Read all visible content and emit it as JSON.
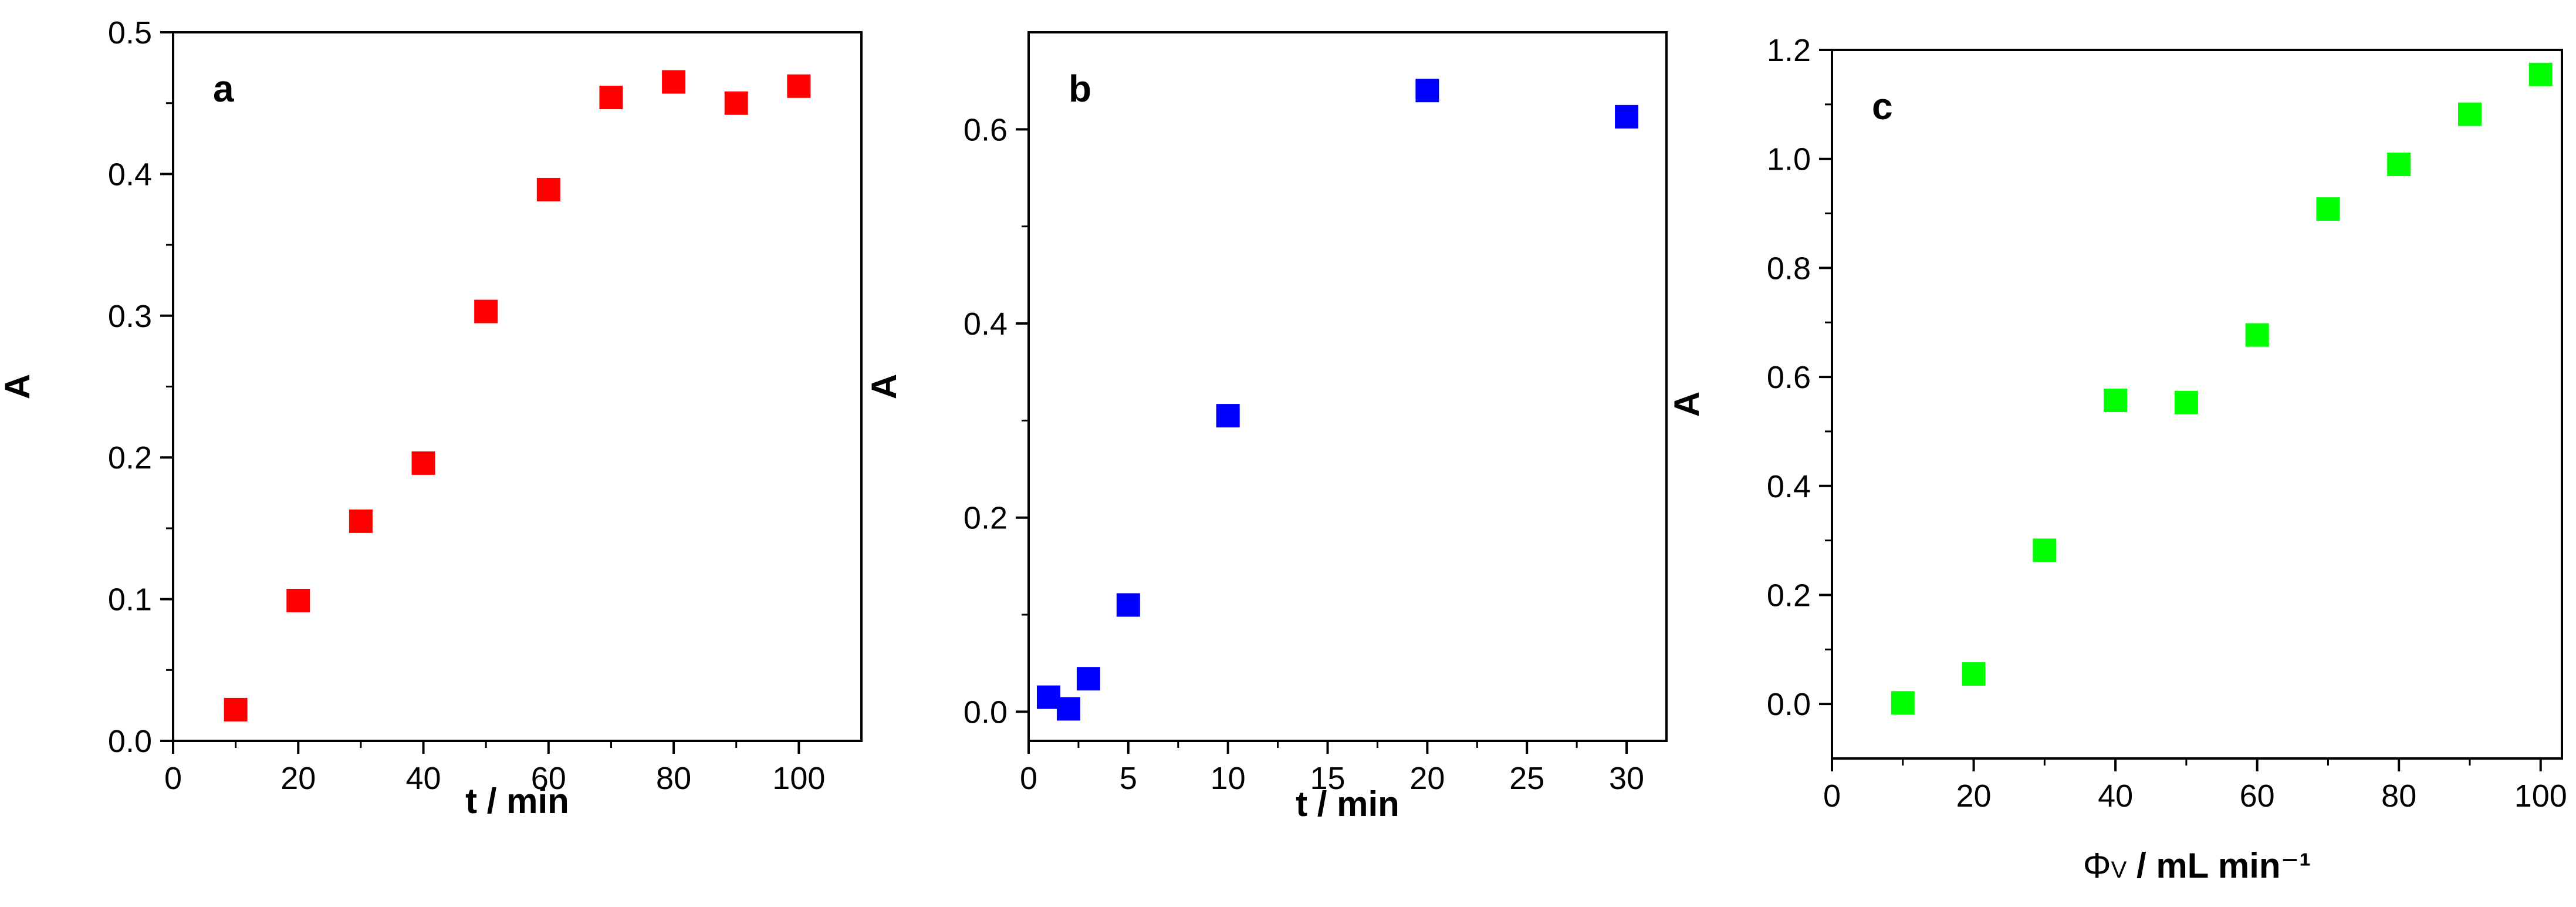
{
  "chart_data": [
    {
      "type": "scatter",
      "panel_label": "a",
      "xlabel": "t / min",
      "ylabel": "A",
      "xlim": [
        0,
        110
      ],
      "ylim": [
        0,
        0.5
      ],
      "xticks": [
        0,
        20,
        40,
        60,
        80,
        100
      ],
      "yticks": [
        0.0,
        0.1,
        0.2,
        0.3,
        0.4,
        0.5
      ],
      "x_tick_labels": [
        "0",
        "20",
        "40",
        "60",
        "80",
        "100"
      ],
      "y_tick_labels": [
        "0.0",
        "0.1",
        "0.2",
        "0.3",
        "0.4",
        "0.5"
      ],
      "grid": false,
      "marker": "square",
      "marker_color": "#ff0000",
      "series": [
        {
          "x": [
            10,
            20,
            30,
            40,
            50,
            60,
            70,
            80,
            90,
            100
          ],
          "y": [
            0.022,
            0.099,
            0.155,
            0.196,
            0.303,
            0.389,
            0.454,
            0.465,
            0.45,
            0.462
          ]
        }
      ]
    },
    {
      "type": "scatter",
      "panel_label": "b",
      "xlabel": "t / min",
      "ylabel": "A",
      "xlim": [
        0,
        32
      ],
      "ylim": [
        -0.03,
        0.7
      ],
      "xticks": [
        0,
        5,
        10,
        15,
        20,
        25,
        30
      ],
      "yticks": [
        0.0,
        0.2,
        0.4,
        0.6
      ],
      "x_tick_labels": [
        "0",
        "5",
        "10",
        "15",
        "20",
        "25",
        "30"
      ],
      "y_tick_labels": [
        "0.0",
        "0.2",
        "0.4",
        "0.6"
      ],
      "grid": false,
      "marker": "square",
      "marker_color": "#0000ff",
      "series": [
        {
          "x": [
            1,
            2,
            3,
            5,
            10,
            20,
            30
          ],
          "y": [
            0.015,
            0.003,
            0.034,
            0.11,
            0.305,
            0.64,
            0.613
          ]
        }
      ]
    },
    {
      "type": "scatter",
      "panel_label": "c",
      "xlabel_symbol": "Φ",
      "xlabel_subscript": "V",
      "xlabel_units": " / mL min⁻¹",
      "ylabel": "A",
      "xlim": [
        0,
        103
      ],
      "ylim": [
        -0.1,
        1.2
      ],
      "xticks": [
        0,
        20,
        40,
        60,
        80,
        100
      ],
      "yticks": [
        0.0,
        0.2,
        0.4,
        0.6,
        0.8,
        1.0,
        1.2
      ],
      "x_tick_labels": [
        "0",
        "20",
        "40",
        "60",
        "80",
        "100"
      ],
      "y_tick_labels": [
        "0.0",
        "0.2",
        "0.4",
        "0.6",
        "0.8",
        "1.0",
        "1.2"
      ],
      "grid": false,
      "marker": "square",
      "marker_color": "#00ff00",
      "series": [
        {
          "x": [
            10,
            20,
            30,
            40,
            50,
            60,
            70,
            80,
            90,
            100
          ],
          "y": [
            0.002,
            0.055,
            0.282,
            0.557,
            0.553,
            0.677,
            0.908,
            0.99,
            1.082,
            1.155
          ]
        }
      ]
    }
  ]
}
